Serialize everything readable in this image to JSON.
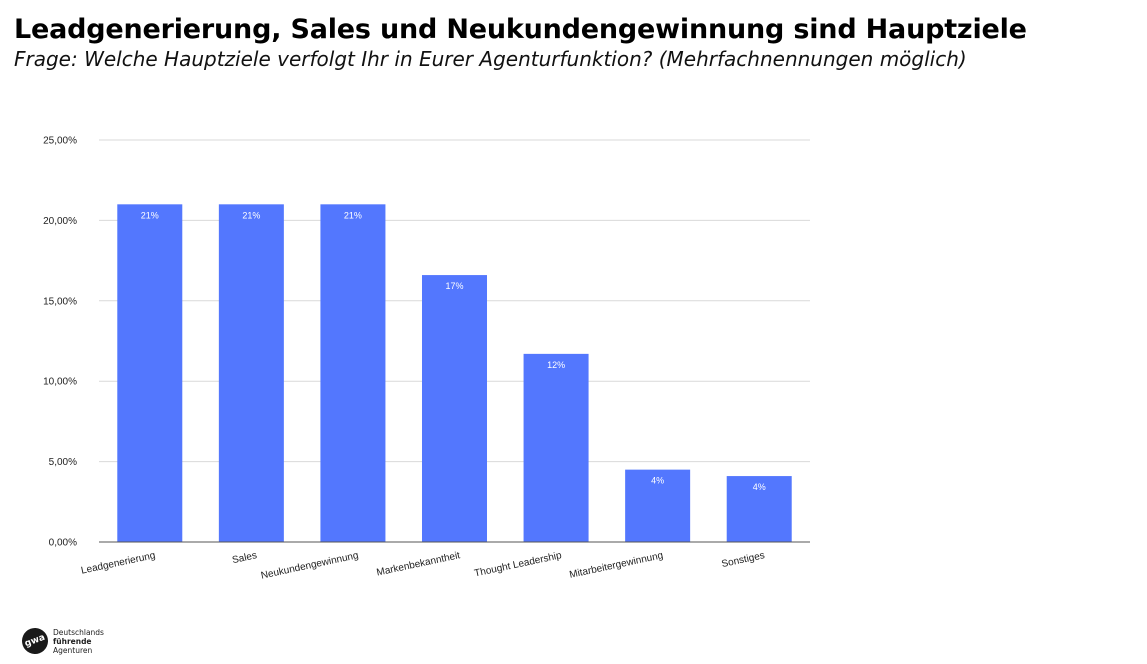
{
  "title": "Leadgenerierung, Sales und Neukundengewinnung sind Hauptziele",
  "subtitle": "Frage: Welche Hauptziele verfolgt Ihr in Eurer Agenturfunktion? (Mehrfachnennungen möglich)",
  "logo": {
    "mark": "gwa",
    "line1": "Deutschlands",
    "line2": "führende",
    "line3": "Agenturen"
  },
  "colors": {
    "bar": "#5377fe",
    "grid": "#d9d9d9",
    "axis": "#555555"
  },
  "chart_data": {
    "type": "bar",
    "categories": [
      "Leadgenerierung",
      "Sales",
      "Neukundengewinnung",
      "Markenbekanntheit",
      "Thought Leadership",
      "Mitarbeitergewinnung",
      "Sonstiges"
    ],
    "values": [
      21,
      21,
      21,
      16.6,
      11.7,
      4.5,
      4.1
    ],
    "data_labels": [
      "21%",
      "21%",
      "21%",
      "17%",
      "12%",
      "4%",
      "4%"
    ],
    "y_ticks": [
      0,
      5,
      10,
      15,
      20,
      25
    ],
    "y_tick_labels": [
      "0,00%",
      "5,00%",
      "10,00%",
      "15,00%",
      "20,00%",
      "25,00%"
    ],
    "ylim": [
      0,
      25
    ],
    "grid": true,
    "legend": "none",
    "title": "",
    "xlabel": "",
    "ylabel": ""
  }
}
